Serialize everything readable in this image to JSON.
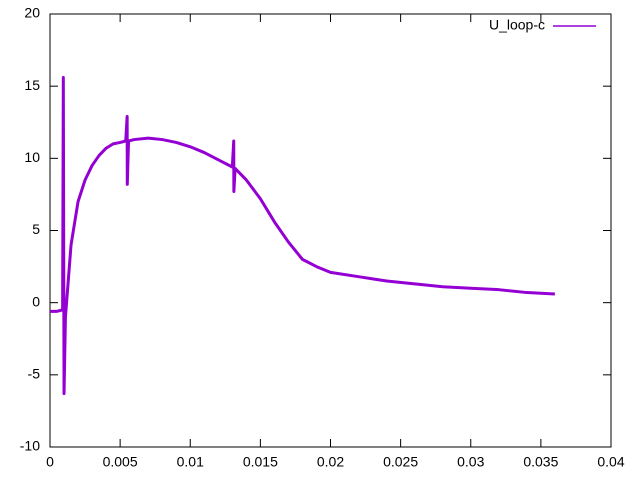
{
  "chart_data": {
    "type": "line",
    "x": [
      0,
      0.0005,
      0.0009,
      0.00095,
      0.001,
      0.0011,
      0.0015,
      0.002,
      0.0025,
      0.003,
      0.0035,
      0.004,
      0.0045,
      0.005,
      0.0054,
      0.0055,
      0.00551,
      0.0056,
      0.006,
      0.007,
      0.008,
      0.009,
      0.01,
      0.011,
      0.012,
      0.013,
      0.0131,
      0.01311,
      0.0132,
      0.014,
      0.015,
      0.016,
      0.017,
      0.018,
      0.019,
      0.02,
      0.022,
      0.024,
      0.026,
      0.028,
      0.03,
      0.032,
      0.034,
      0.036
    ],
    "series": [
      {
        "name": "U_loop-c",
        "color": "#9400d3",
        "values": [
          -0.6,
          -0.6,
          -0.5,
          15.6,
          -6.3,
          -1,
          4,
          7,
          8.5,
          9.5,
          10.2,
          10.7,
          11,
          11.1,
          11.2,
          12.9,
          8.2,
          11.2,
          11.3,
          11.4,
          11.3,
          11.1,
          10.8,
          10.4,
          9.9,
          9.4,
          11.2,
          7.7,
          9.3,
          8.5,
          7.2,
          5.6,
          4.2,
          3.0,
          2.5,
          2.1,
          1.8,
          1.5,
          1.3,
          1.1,
          1.0,
          0.9,
          0.7,
          0.6
        ]
      }
    ],
    "xlim": [
      0,
      0.04
    ],
    "xticks": [
      0,
      0.005,
      0.01,
      0.015,
      0.02,
      0.025,
      0.03,
      0.035,
      0.04
    ],
    "ylim": [
      -10,
      20
    ],
    "yticks": [
      -10,
      -5,
      0,
      5,
      10,
      15,
      20
    ],
    "grid": false,
    "legend": "top-right"
  }
}
